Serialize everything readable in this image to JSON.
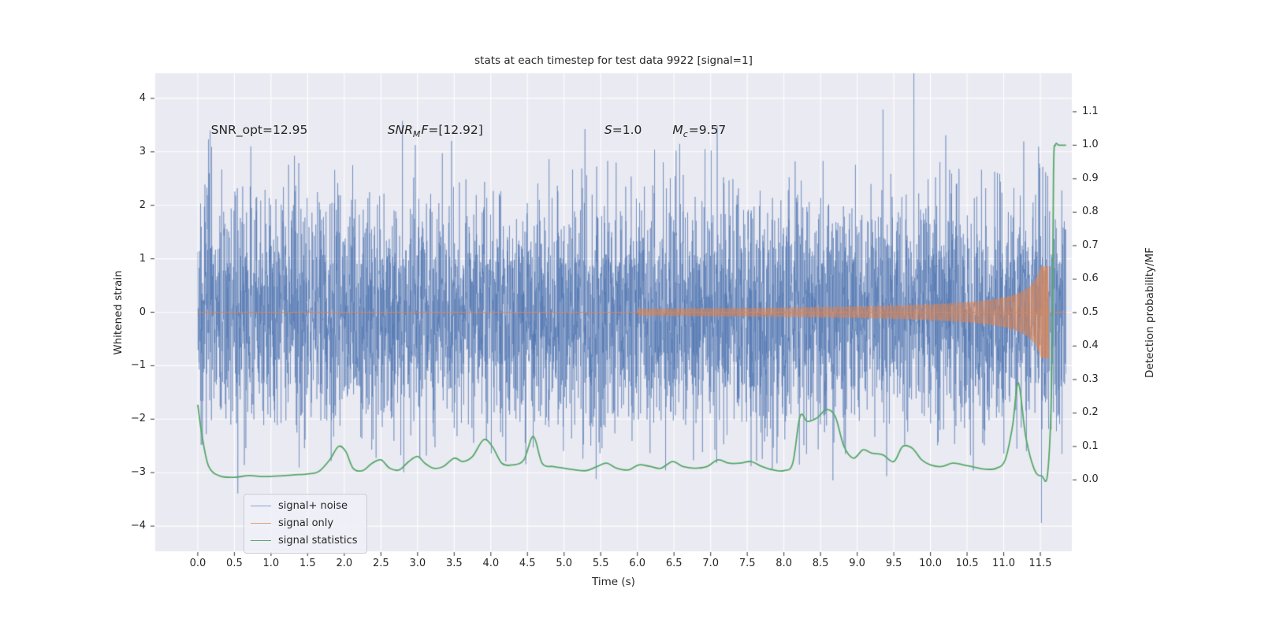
{
  "chart_data": {
    "type": "line",
    "title": "stats at each timestep for test data 9922 [signal=1]",
    "xlabel": "Time (s)",
    "ylabel_left": "Whitened strain",
    "ylabel_right": "Detection probability/MF",
    "background_color": "#eaeaf2",
    "grid": true,
    "grid_color": "#ffffff",
    "xlim": [
      -0.58,
      11.93
    ],
    "ylim_left": [
      -4.47,
      4.47
    ],
    "ylim_right": [
      -0.213,
      1.215
    ],
    "x_tick_values": [
      0,
      0.5,
      1,
      1.5,
      2,
      2.5,
      3,
      3.5,
      4,
      4.5,
      5,
      5.5,
      6,
      6.5,
      7,
      7.5,
      8,
      8.5,
      9,
      9.5,
      10,
      10.5,
      11,
      11.5
    ],
    "x_tick_labels": [
      "0.0",
      "0.5",
      "1.0",
      "1.5",
      "2.0",
      "2.5",
      "3.0",
      "3.5",
      "4.0",
      "4.5",
      "5.0",
      "5.5",
      "6.0",
      "6.5",
      "7.0",
      "7.5",
      "8.0",
      "8.5",
      "9.0",
      "9.5",
      "10.0",
      "10.5",
      "11.0",
      "11.5"
    ],
    "y_left_tick_values": [
      4,
      3,
      2,
      1,
      0,
      -1,
      -2,
      -3,
      -4
    ],
    "y_left_tick_labels": [
      "4",
      "3",
      "2",
      "1",
      "0",
      "−1",
      "−2",
      "−3",
      "−4"
    ],
    "y_right_tick_values": [
      1.1,
      1.0,
      0.9,
      0.8,
      0.7,
      0.6,
      0.5,
      0.4,
      0.3,
      0.2,
      0.1,
      0.0
    ],
    "y_right_tick_labels": [
      "1.1",
      "1.0",
      "0.9",
      "0.8",
      "0.7",
      "0.6",
      "0.5",
      "0.4",
      "0.3",
      "0.2",
      "0.1",
      "0.0"
    ],
    "series": [
      {
        "name": "signal+ noise",
        "kind": "noise",
        "axis": "left",
        "color": "#4c72b0",
        "alpha": 0.62,
        "line_width": 0.8,
        "seed": 9922,
        "sigma": 1.08,
        "n": 5200,
        "t_range": [
          0,
          11.85
        ]
      },
      {
        "name": "signal only",
        "kind": "chirp",
        "axis": "left",
        "color": "#dd8452",
        "alpha": 0.75,
        "baseline_alpha": 0.9,
        "fill_alpha": 0.5,
        "t_range": [
          0,
          11.85
        ],
        "t_start": 6.0,
        "t_merge": 11.615,
        "amp_ref": 0.8,
        "tau_ref": 0.12,
        "amp_exp": 0.65,
        "amp_max": 0.86,
        "f_base": 6,
        "f_ref": 4,
        "f_exp": 0.375,
        "f_max": 40
      },
      {
        "name": "signal statistics",
        "kind": "spline",
        "axis": "right",
        "color": "#55a868",
        "line_width": 1.8,
        "points": [
          [
            0.0,
            0.225
          ],
          [
            0.06,
            0.13
          ],
          [
            0.15,
            0.04
          ],
          [
            0.3,
            0.012
          ],
          [
            0.5,
            0.008
          ],
          [
            0.7,
            0.013
          ],
          [
            0.9,
            0.01
          ],
          [
            1.1,
            0.012
          ],
          [
            1.3,
            0.015
          ],
          [
            1.5,
            0.018
          ],
          [
            1.65,
            0.025
          ],
          [
            1.8,
            0.06
          ],
          [
            1.92,
            0.1
          ],
          [
            2.02,
            0.085
          ],
          [
            2.12,
            0.035
          ],
          [
            2.25,
            0.028
          ],
          [
            2.38,
            0.05
          ],
          [
            2.5,
            0.06
          ],
          [
            2.62,
            0.035
          ],
          [
            2.75,
            0.03
          ],
          [
            2.88,
            0.055
          ],
          [
            3.0,
            0.07
          ],
          [
            3.1,
            0.05
          ],
          [
            3.22,
            0.035
          ],
          [
            3.35,
            0.04
          ],
          [
            3.5,
            0.065
          ],
          [
            3.62,
            0.055
          ],
          [
            3.75,
            0.07
          ],
          [
            3.9,
            0.12
          ],
          [
            4.02,
            0.1
          ],
          [
            4.15,
            0.05
          ],
          [
            4.3,
            0.045
          ],
          [
            4.45,
            0.06
          ],
          [
            4.58,
            0.13
          ],
          [
            4.7,
            0.05
          ],
          [
            4.85,
            0.04
          ],
          [
            5.0,
            0.035
          ],
          [
            5.15,
            0.03
          ],
          [
            5.3,
            0.028
          ],
          [
            5.45,
            0.04
          ],
          [
            5.58,
            0.05
          ],
          [
            5.72,
            0.035
          ],
          [
            5.88,
            0.03
          ],
          [
            6.02,
            0.045
          ],
          [
            6.18,
            0.04
          ],
          [
            6.32,
            0.035
          ],
          [
            6.48,
            0.055
          ],
          [
            6.62,
            0.04
          ],
          [
            6.78,
            0.035
          ],
          [
            6.95,
            0.04
          ],
          [
            7.1,
            0.06
          ],
          [
            7.25,
            0.05
          ],
          [
            7.4,
            0.05
          ],
          [
            7.55,
            0.055
          ],
          [
            7.7,
            0.04
          ],
          [
            7.85,
            0.03
          ],
          [
            8.0,
            0.028
          ],
          [
            8.12,
            0.05
          ],
          [
            8.22,
            0.19
          ],
          [
            8.32,
            0.175
          ],
          [
            8.45,
            0.185
          ],
          [
            8.58,
            0.21
          ],
          [
            8.7,
            0.19
          ],
          [
            8.82,
            0.1
          ],
          [
            8.95,
            0.065
          ],
          [
            9.08,
            0.09
          ],
          [
            9.2,
            0.08
          ],
          [
            9.35,
            0.075
          ],
          [
            9.5,
            0.055
          ],
          [
            9.62,
            0.1
          ],
          [
            9.75,
            0.095
          ],
          [
            9.88,
            0.06
          ],
          [
            10.0,
            0.045
          ],
          [
            10.15,
            0.04
          ],
          [
            10.3,
            0.05
          ],
          [
            10.45,
            0.045
          ],
          [
            10.6,
            0.038
          ],
          [
            10.75,
            0.032
          ],
          [
            10.9,
            0.035
          ],
          [
            11.02,
            0.06
          ],
          [
            11.12,
            0.16
          ],
          [
            11.2,
            0.29
          ],
          [
            11.3,
            0.13
          ],
          [
            11.42,
            0.03
          ],
          [
            11.52,
            0.012
          ],
          [
            11.6,
            0.02
          ],
          [
            11.655,
            0.3
          ],
          [
            11.68,
            0.92
          ],
          [
            11.705,
            1.0
          ],
          [
            11.75,
            1.0
          ],
          [
            11.8,
            1.0
          ],
          [
            11.85,
            1.0
          ]
        ]
      }
    ],
    "annotations": [
      {
        "name": "annotation-snr-opt",
        "x": 0.18,
        "y": 3.37,
        "parts": [
          {
            "text": "SNR_opt=12.95",
            "style": "normal"
          }
        ]
      },
      {
        "name": "annotation-snr-mf",
        "x": 2.59,
        "y": 3.37,
        "parts": [
          {
            "text": "SNR",
            "style": "italic"
          },
          {
            "text": "M",
            "style": "sub"
          },
          {
            "text": "F",
            "style": "italic"
          },
          {
            "text": "=[12.92]",
            "style": "normal"
          }
        ]
      },
      {
        "name": "annotation-s",
        "x": 5.55,
        "y": 3.37,
        "parts": [
          {
            "text": "S",
            "style": "italic"
          },
          {
            "text": "=1.0",
            "style": "normal"
          }
        ]
      },
      {
        "name": "annotation-mc",
        "x": 6.48,
        "y": 3.37,
        "parts": [
          {
            "text": "M",
            "style": "italic"
          },
          {
            "text": "c",
            "style": "sub"
          },
          {
            "text": "=9.57",
            "style": "normal"
          }
        ]
      }
    ],
    "legend": {
      "position": "lower left",
      "items": [
        {
          "label": "signal+ noise",
          "color": "#4c72b0",
          "opacity": 0.62
        },
        {
          "label": "signal only",
          "color": "#dd8452",
          "opacity": 0.75
        },
        {
          "label": "signal statistics",
          "color": "#55a868",
          "opacity": 1
        }
      ]
    }
  }
}
